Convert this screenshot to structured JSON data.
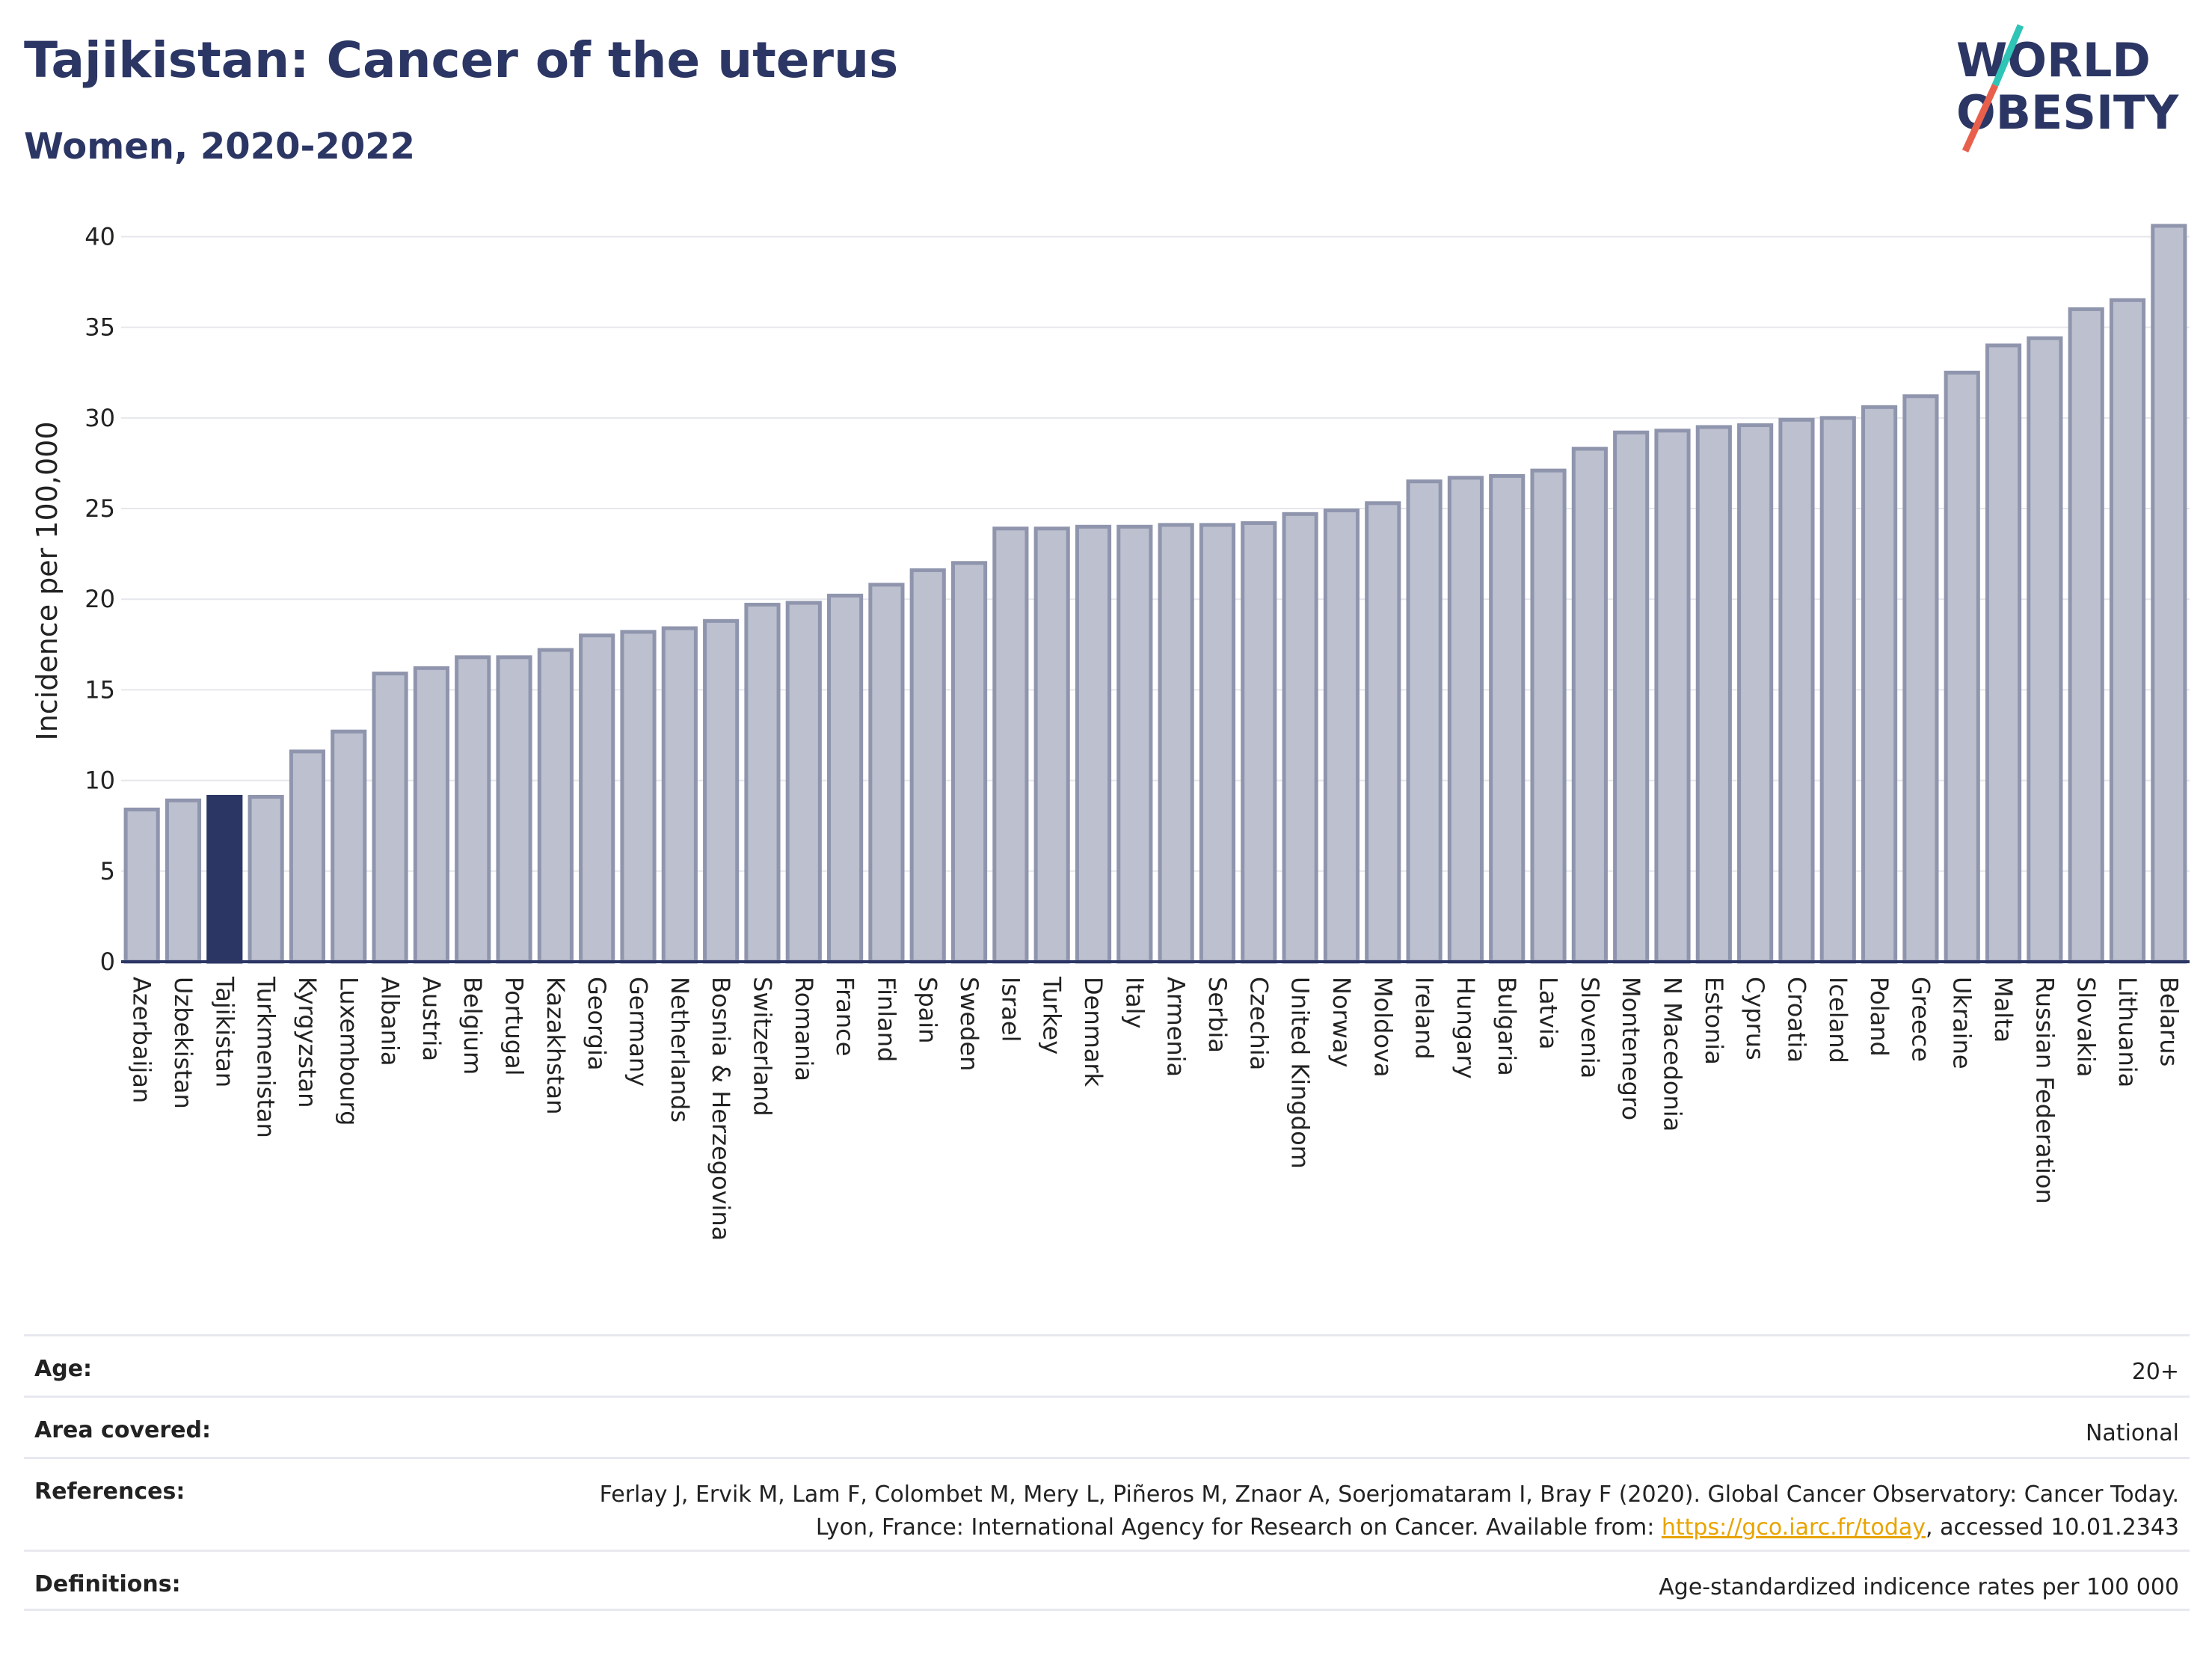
{
  "header": {
    "title": "Tajikistan: Cancer of the uterus",
    "subtitle": "Women, 2020-2022"
  },
  "logo": {
    "line1": "WORLD",
    "line2": "OBESITY",
    "accent_colors": [
      "#2ec4b6",
      "#e8604c"
    ],
    "text_color": "#2b3664"
  },
  "colors": {
    "highlight": "#2b3664",
    "bar": "#bcc0cf",
    "bar_stroke": "#8f95ad",
    "axis": "#2b3664"
  },
  "chart_data": {
    "type": "bar",
    "ylabel": "Incidence per 100,000",
    "xlabel": "",
    "ylim": [
      0,
      42
    ],
    "yticks": [
      0,
      5,
      10,
      15,
      20,
      25,
      30,
      35,
      40
    ],
    "grid": true,
    "highlight": "Tajikistan",
    "categories": [
      "Azerbaijan",
      "Uzbekistan",
      "Tajikistan",
      "Turkmenistan",
      "Kyrgyzstan",
      "Luxembourg",
      "Albania",
      "Austria",
      "Belgium",
      "Portugal",
      "Kazakhstan",
      "Georgia",
      "Germany",
      "Netherlands",
      "Bosnia & Herzegovina",
      "Switzerland",
      "Romania",
      "France",
      "Finland",
      "Spain",
      "Sweden",
      "Israel",
      "Turkey",
      "Denmark",
      "Italy",
      "Armenia",
      "Serbia",
      "Czechia",
      "United Kingdom",
      "Norway",
      "Moldova",
      "Ireland",
      "Hungary",
      "Bulgaria",
      "Latvia",
      "Slovenia",
      "Montenegro",
      "N Macedonia",
      "Estonia",
      "Cyprus",
      "Croatia",
      "Iceland",
      "Poland",
      "Greece",
      "Ukraine",
      "Malta",
      "Russian Federation",
      "Slovakia",
      "Lithuania",
      "Belarus"
    ],
    "values": [
      8.4,
      8.9,
      9.1,
      9.1,
      11.6,
      12.7,
      15.9,
      16.2,
      16.8,
      16.8,
      17.2,
      18.0,
      18.2,
      18.4,
      18.8,
      19.7,
      19.8,
      20.2,
      20.8,
      21.6,
      22.0,
      23.9,
      23.9,
      24.0,
      24.0,
      24.1,
      24.1,
      24.2,
      24.7,
      24.9,
      25.3,
      26.5,
      26.7,
      26.8,
      27.1,
      28.3,
      29.2,
      29.3,
      29.5,
      29.6,
      29.9,
      30.0,
      30.6,
      31.2,
      32.5,
      34.0,
      34.4,
      36.0,
      36.5,
      40.6
    ]
  },
  "info": {
    "age_label": "Age:",
    "age_value": "20+",
    "area_label": "Area covered:",
    "area_value": "National",
    "references_label": "References:",
    "references_text": "Ferlay J, Ervik M, Lam F, Colombet M, Mery L, Piñeros M, Znaor A, Soerjomataram I, Bray F (2020). Global Cancer Observatory: Cancer Today. Lyon, France: International Agency for Research on Cancer. Available from:",
    "references_link": "https://gco.iarc.fr/today",
    "references_suffix": ", accessed 10.01.2343",
    "definitions_label": "Definitions:",
    "definitions_value": "Age-standardized indicence rates per 100 000"
  }
}
